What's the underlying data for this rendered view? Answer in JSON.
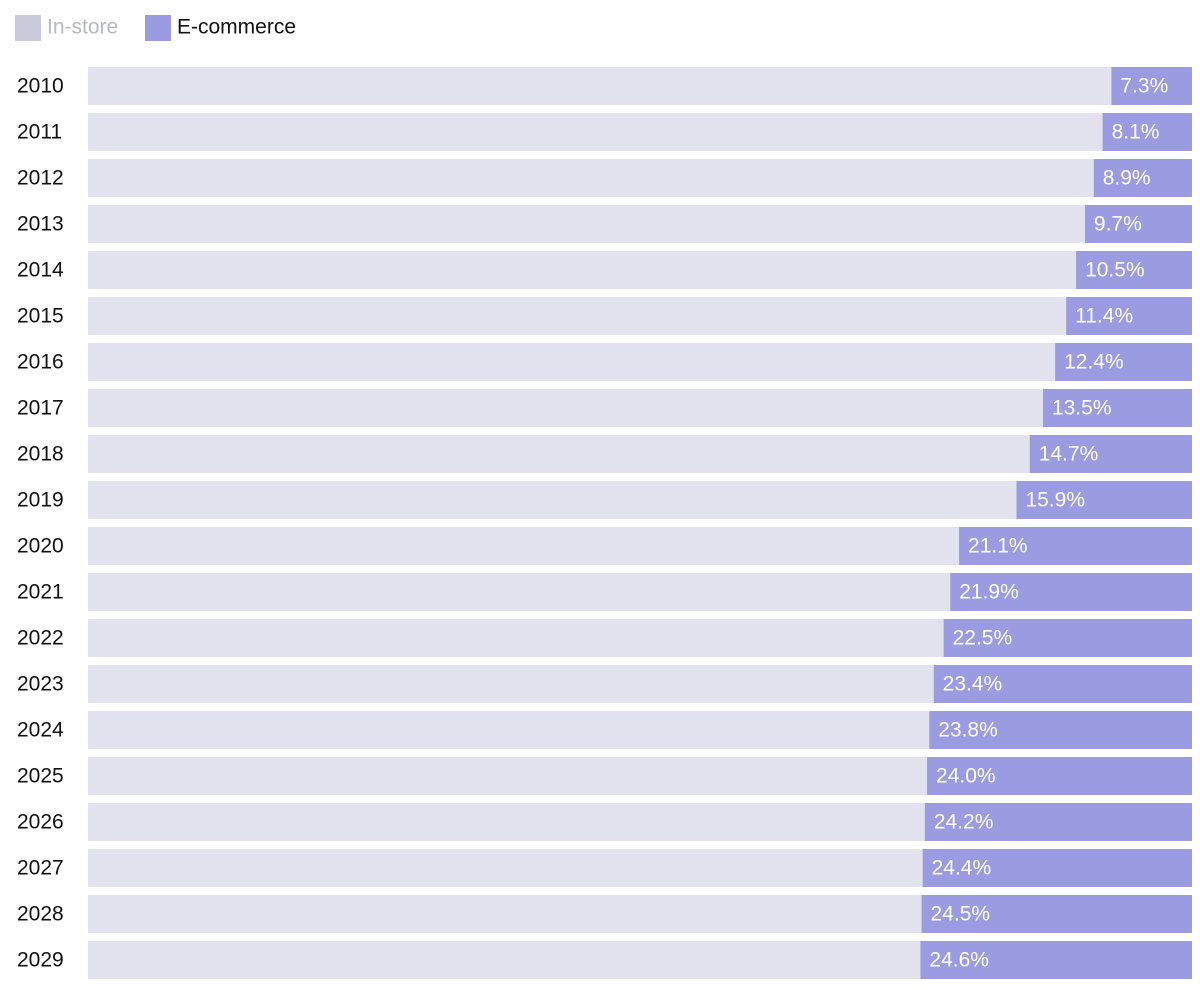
{
  "chart_data": {
    "type": "stacked-bar-horizontal",
    "categories": [
      "2010",
      "2011",
      "2012",
      "2013",
      "2014",
      "2015",
      "2016",
      "2017",
      "2018",
      "2019",
      "2020",
      "2021",
      "2022",
      "2023",
      "2024",
      "2025",
      "2026",
      "2027",
      "2028",
      "2029"
    ],
    "series": [
      {
        "name": "In-store",
        "color": "#e2e2ee",
        "values": [
          92.7,
          91.9,
          91.1,
          90.3,
          89.5,
          88.6,
          87.6,
          86.5,
          85.3,
          84.1,
          78.9,
          78.1,
          77.5,
          76.6,
          76.2,
          76.0,
          75.8,
          75.6,
          75.5,
          75.4
        ]
      },
      {
        "name": "E-commerce",
        "color": "#9b9be2",
        "values": [
          7.3,
          8.1,
          8.9,
          9.7,
          10.5,
          11.4,
          12.4,
          13.5,
          14.7,
          15.9,
          21.1,
          21.9,
          22.5,
          23.4,
          23.8,
          24.0,
          24.2,
          24.4,
          24.5,
          24.6
        ],
        "value_labels": [
          "7.3%",
          "8.1%",
          "8.9%",
          "9.7%",
          "10.5%",
          "11.4%",
          "12.4%",
          "13.5%",
          "14.7%",
          "15.9%",
          "21.1%",
          "21.9%",
          "22.5%",
          "23.4%",
          "23.8%",
          "24.0%",
          "24.2%",
          "24.4%",
          "24.5%",
          "24.6%"
        ]
      }
    ],
    "xlim": [
      0,
      100
    ]
  }
}
